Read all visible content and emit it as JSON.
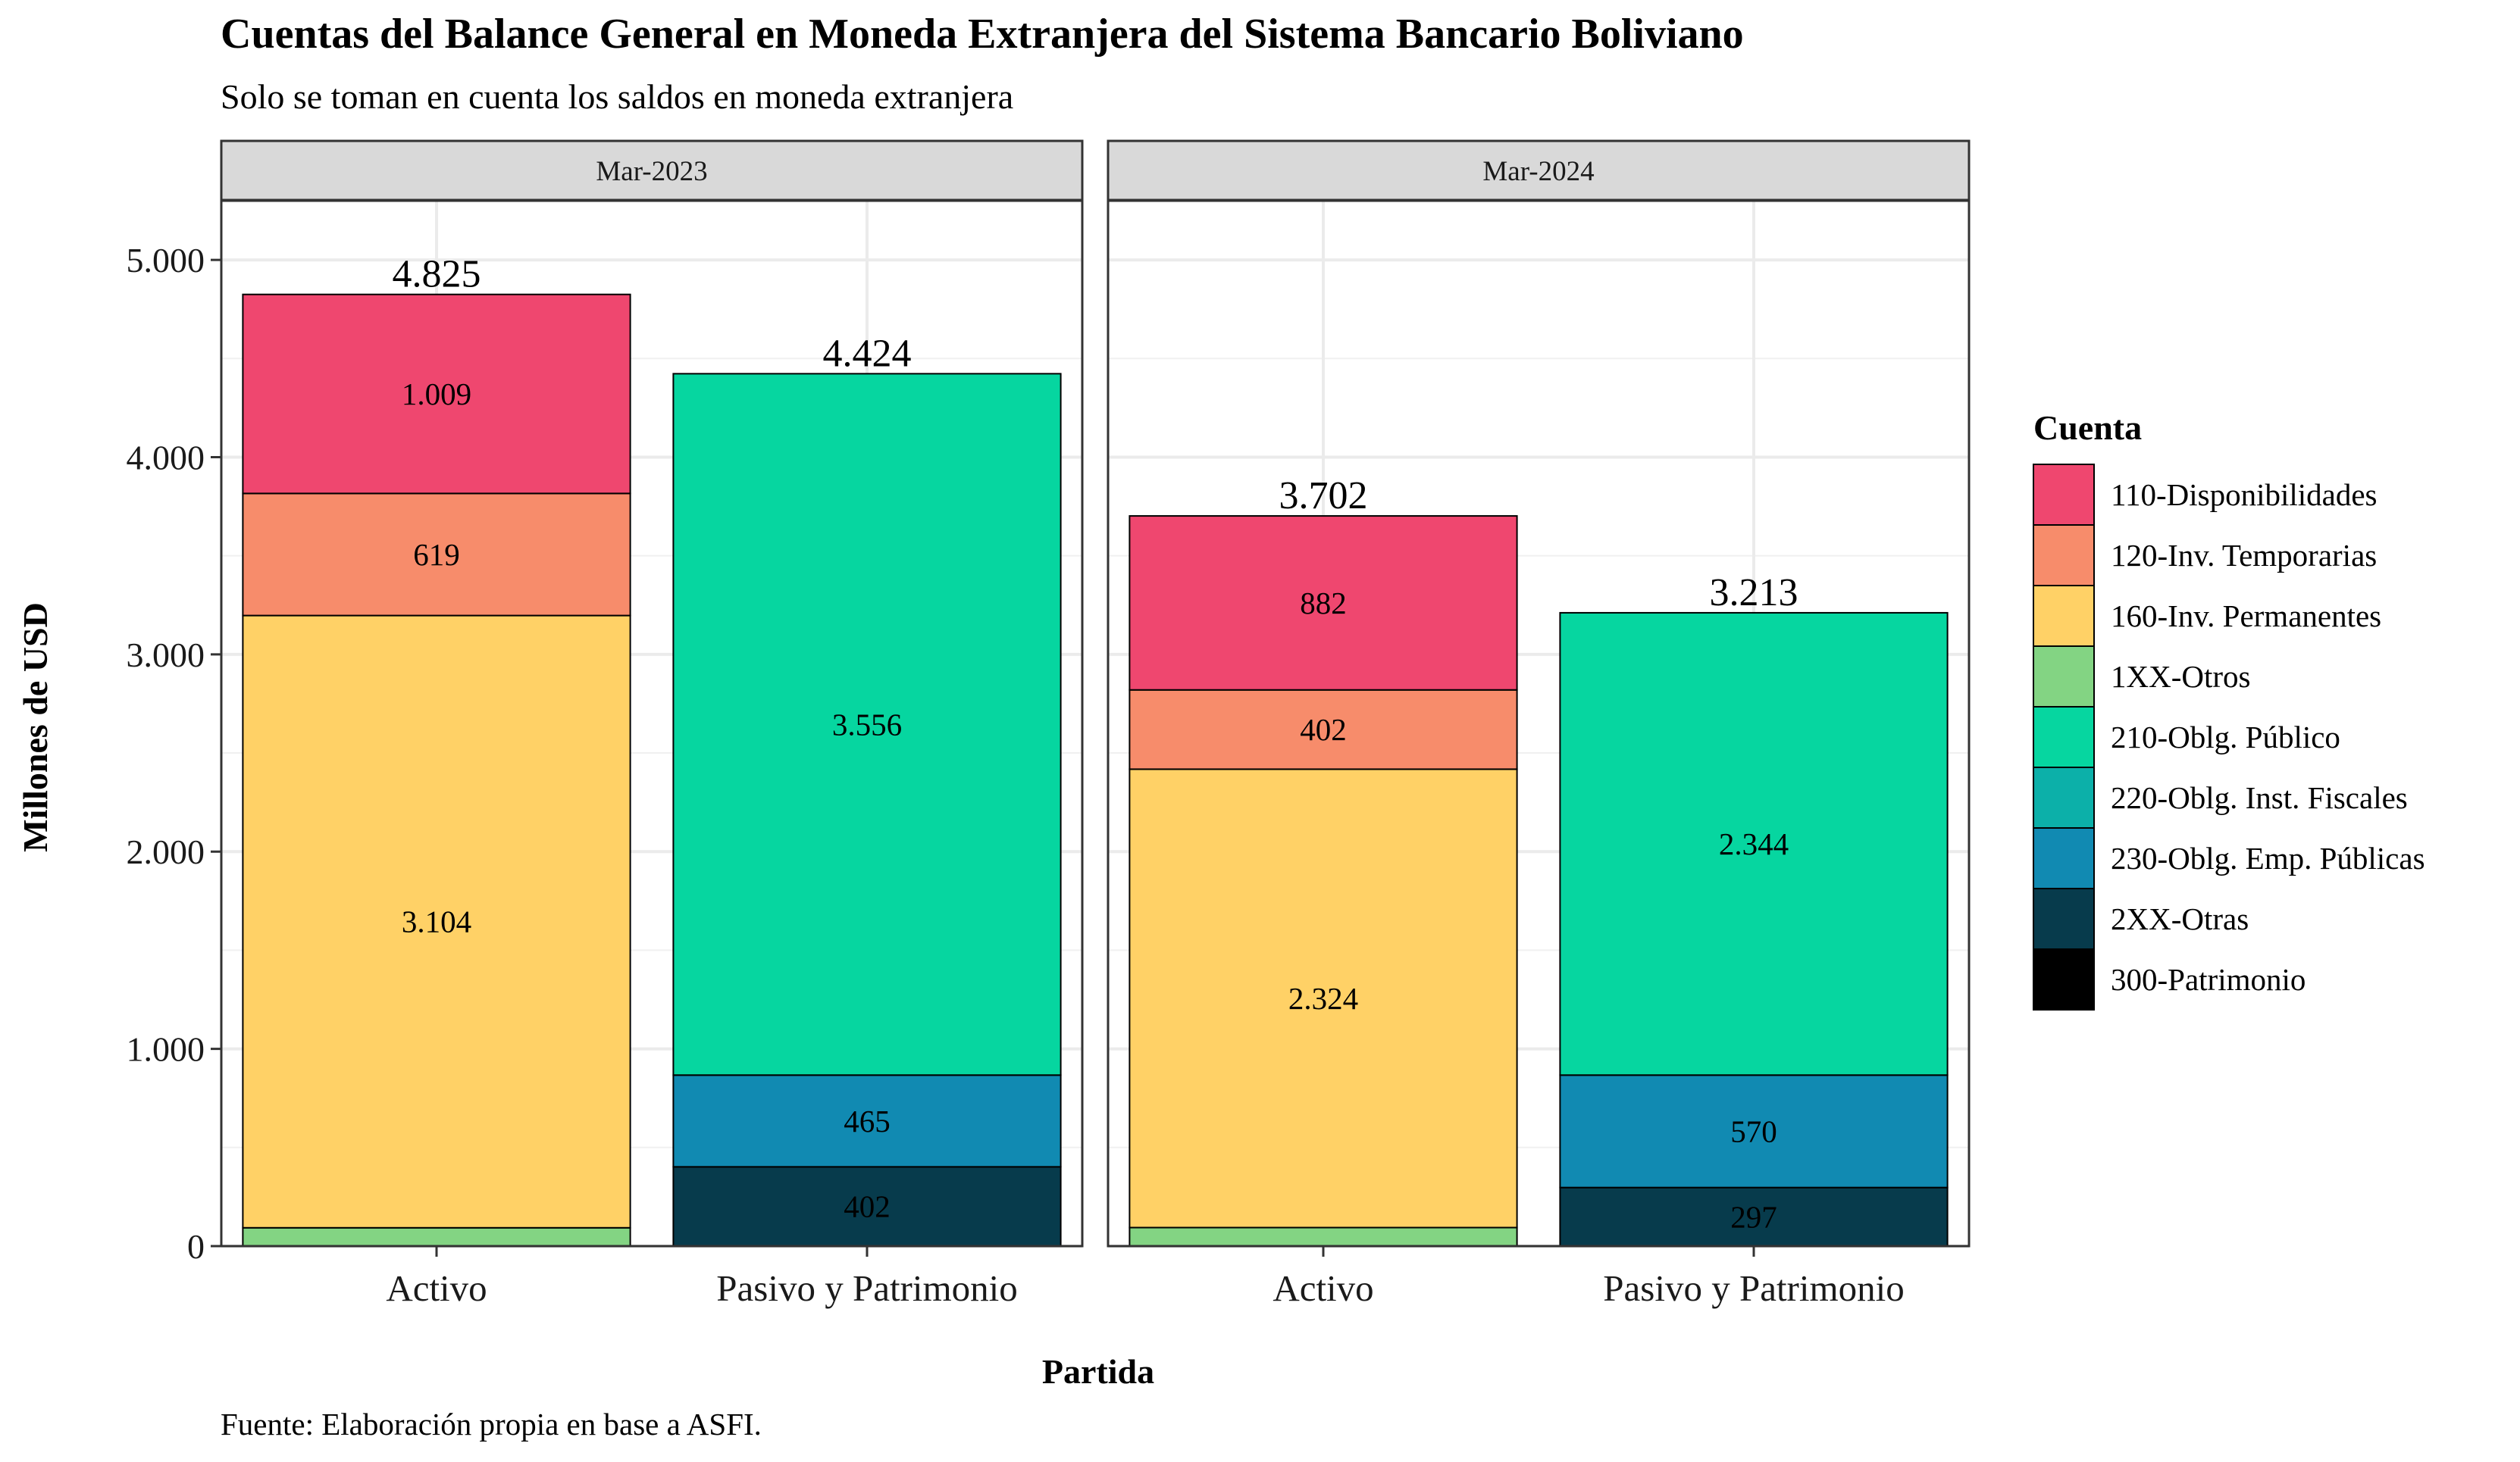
{
  "title": "Cuentas del Balance General en Moneda Extranjera del Sistema Bancario Boliviano",
  "subtitle": "Solo se toman en cuenta los saldos en moneda extranjera",
  "caption": "Fuente: Elaboración propia en base a ASFI.",
  "colors": {
    "110-Disponibilidades": "#ef476f",
    "120-Inv. Temporarias": "#f78c6b",
    "160-Inv. Permanentes": "#ffd166",
    "1XX-Otros": "#83d483",
    "210-Oblg. Público": "#06d6a0",
    "220-Oblg. Inst. Fiscales": "#0cb0a9",
    "230-Oblg. Emp. Públicas": "#118ab2",
    "2XX-Otras": "#073b4c",
    "300-Patrimonio": "#000000"
  },
  "chart_data": {
    "type": "bar",
    "stacked": true,
    "facets": [
      "Mar-2023",
      "Mar-2024"
    ],
    "categories": [
      "Activo",
      "Pasivo y Patrimonio"
    ],
    "xlabel": "Partida",
    "ylabel": "Millones de USD",
    "ylim": [
      0,
      5300
    ],
    "yticks": [
      0,
      1000,
      2000,
      3000,
      4000,
      5000
    ],
    "ytick_labels": [
      "0",
      "1.000",
      "2.000",
      "3.000",
      "4.000",
      "5.000"
    ],
    "grid": true,
    "legend_title": "Cuenta",
    "legend_position": "right",
    "legend": [
      "110-Disponibilidades",
      "120-Inv. Temporarias",
      "160-Inv. Permanentes",
      "1XX-Otros",
      "210-Oblg. Público",
      "220-Oblg. Inst. Fiscales",
      "230-Oblg. Emp. Públicas",
      "2XX-Otras",
      "300-Patrimonio"
    ],
    "panels": [
      {
        "facet": "Mar-2023",
        "bars": [
          {
            "category": "Activo",
            "total_label": "4.825",
            "segments": [
              {
                "series": "1XX-Otros",
                "value": 93,
                "label": ""
              },
              {
                "series": "160-Inv. Permanentes",
                "value": 3104,
                "label": "3.104"
              },
              {
                "series": "120-Inv. Temporarias",
                "value": 619,
                "label": "619"
              },
              {
                "series": "110-Disponibilidades",
                "value": 1009,
                "label": "1.009"
              }
            ]
          },
          {
            "category": "Pasivo y Patrimonio",
            "total_label": "4.424",
            "segments": [
              {
                "series": "2XX-Otras",
                "value": 402,
                "label": "402"
              },
              {
                "series": "230-Oblg. Emp. Públicas",
                "value": 465,
                "label": "465"
              },
              {
                "series": "210-Oblg. Público",
                "value": 3556,
                "label": "3.556"
              }
            ]
          }
        ]
      },
      {
        "facet": "Mar-2024",
        "bars": [
          {
            "category": "Activo",
            "total_label": "3.702",
            "segments": [
              {
                "series": "1XX-Otros",
                "value": 94,
                "label": ""
              },
              {
                "series": "160-Inv. Permanentes",
                "value": 2324,
                "label": "2.324"
              },
              {
                "series": "120-Inv. Temporarias",
                "value": 402,
                "label": "402"
              },
              {
                "series": "110-Disponibilidades",
                "value": 882,
                "label": "882"
              }
            ]
          },
          {
            "category": "Pasivo y Patrimonio",
            "total_label": "3.213",
            "segments": [
              {
                "series": "2XX-Otras",
                "value": 297,
                "label": "297"
              },
              {
                "series": "230-Oblg. Emp. Públicas",
                "value": 570,
                "label": "570"
              },
              {
                "series": "210-Oblg. Público",
                "value": 2344,
                "label": "2.344"
              }
            ]
          }
        ]
      }
    ]
  }
}
